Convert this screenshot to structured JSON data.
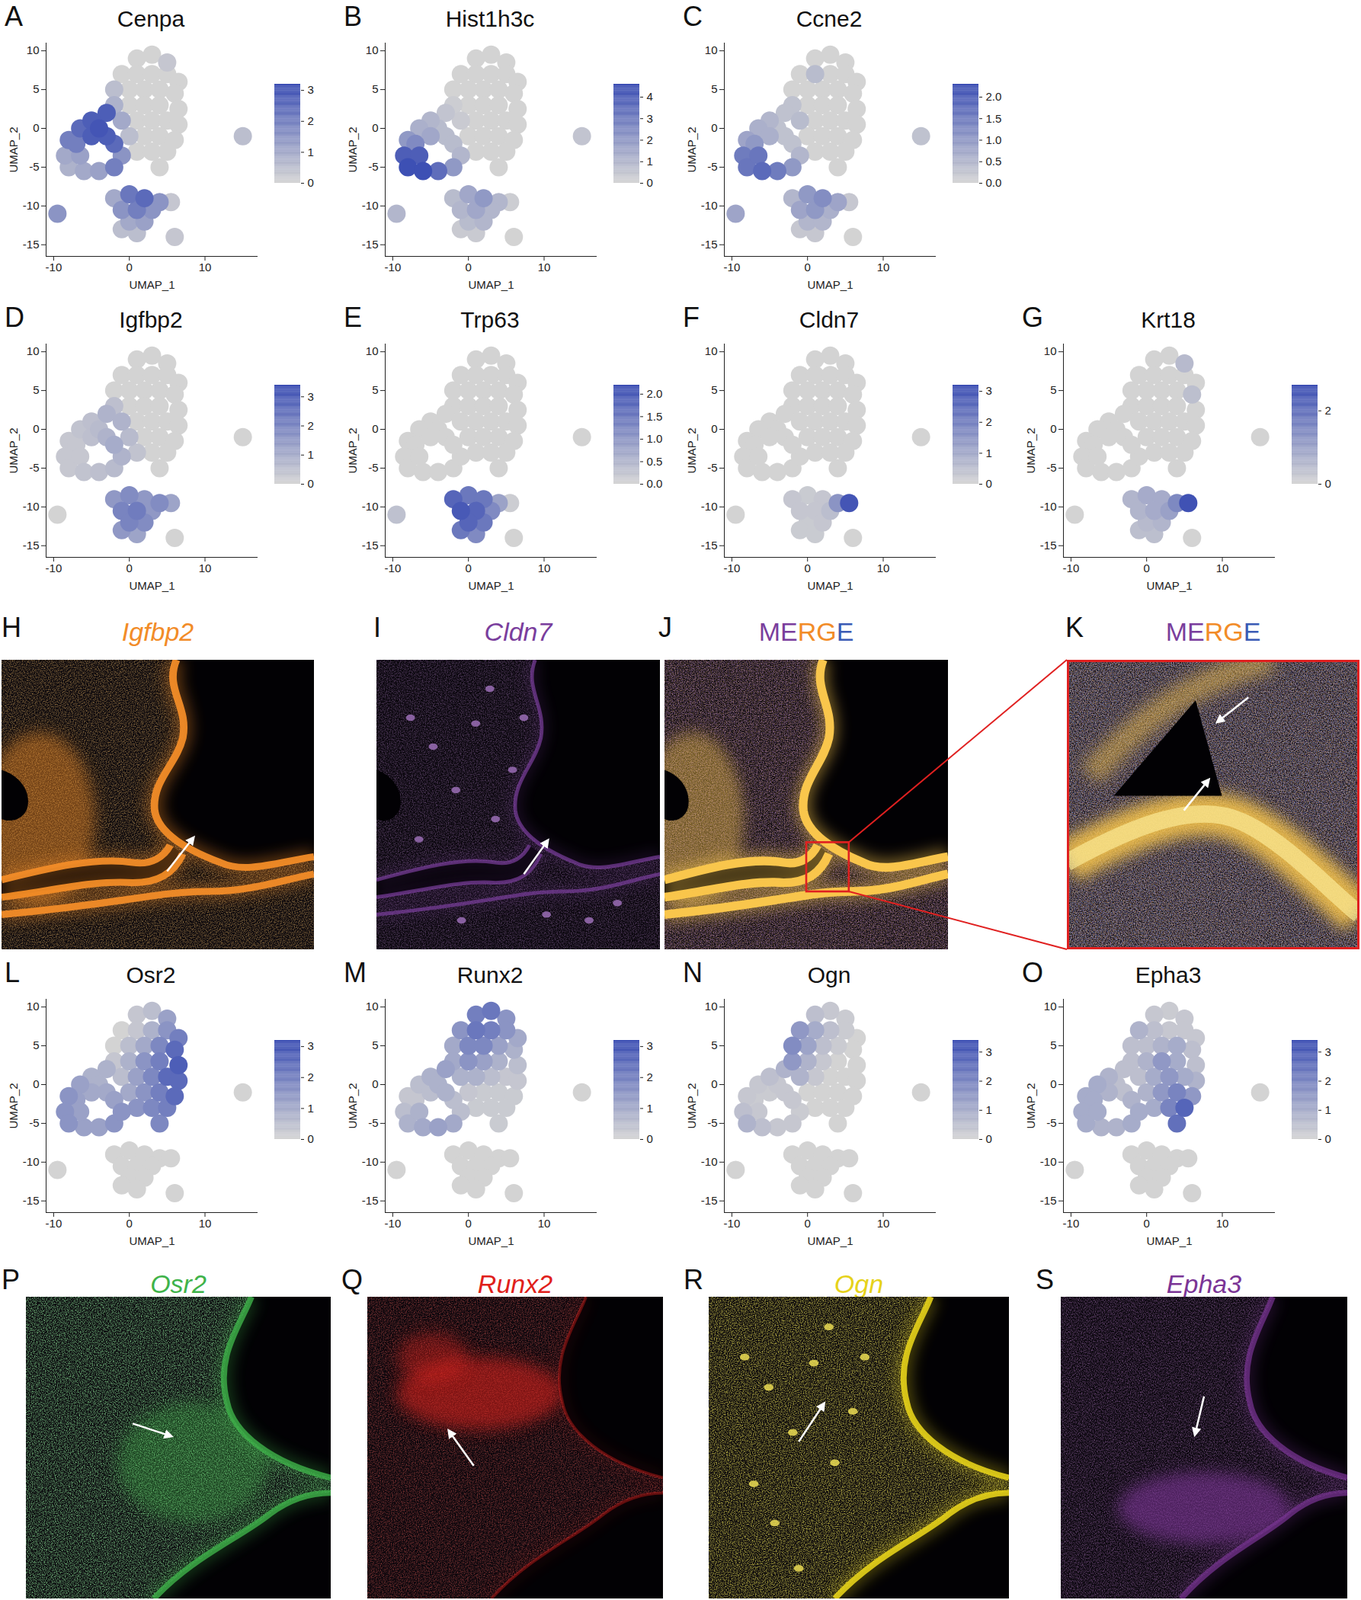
{
  "umap": {
    "xlabel": "UMAP_1",
    "ylabel": "UMAP_2",
    "xlim": [
      -11,
      17
    ],
    "ylim": [
      -16.5,
      11
    ],
    "xticks": [
      -10,
      0,
      10
    ],
    "yticks": [
      -15,
      -10,
      -5,
      0,
      5,
      10
    ],
    "colors": [
      "#d3d3d3",
      "#3a4db3"
    ],
    "x": [
      1,
      3,
      5,
      -1,
      1,
      3,
      5,
      6.5,
      -2,
      0,
      2,
      4,
      6,
      -2,
      0,
      2,
      4,
      6.5,
      -1,
      1,
      3,
      5,
      6.5,
      0,
      2,
      4,
      6,
      1,
      3,
      5,
      4,
      -3,
      -5,
      -6.5,
      -8,
      -4,
      -3,
      -5,
      -7,
      -8.5,
      -8,
      -6,
      -4,
      -2,
      -1,
      -2,
      -6.5,
      -2,
      0,
      2,
      4,
      5.5,
      -1,
      1,
      3,
      0,
      2,
      -1,
      1,
      -9.5,
      15,
      6
    ],
    "y": [
      9,
      9.5,
      8.5,
      7,
      7,
      7,
      7,
      6,
      5,
      5,
      5,
      5,
      4.5,
      3,
      3,
      3,
      3,
      2.5,
      1,
      1,
      1,
      1,
      0.5,
      -1,
      -1,
      -1,
      -1.5,
      -3,
      -3,
      -3,
      -5,
      2,
      1,
      0,
      -1.5,
      0,
      -1,
      -1,
      -2,
      -3.5,
      -5,
      -5.5,
      -5.5,
      -5,
      -3.5,
      -2,
      -3.5,
      -9,
      -8.5,
      -9,
      -9.5,
      -9.5,
      -10.5,
      -10.5,
      -10.5,
      -12,
      -12,
      -13,
      -13.5,
      -11,
      -1,
      -14
    ]
  },
  "chart_data": [
    {
      "type": "scatter",
      "title": "Cenpa",
      "annotations": [
        "A"
      ],
      "color_range": [
        0,
        3.2
      ],
      "color_ticks": [
        0,
        1,
        2,
        3
      ],
      "values": [
        0,
        0,
        0.3,
        0,
        0,
        0,
        0,
        0,
        0.5,
        0,
        0,
        0,
        0,
        0.8,
        0,
        0,
        0,
        0,
        1,
        0,
        0,
        0,
        0,
        0.5,
        0,
        0,
        0,
        0,
        0,
        0,
        0,
        2.8,
        2.8,
        2.5,
        2,
        3,
        2.8,
        2.8,
        2,
        1,
        0.8,
        1,
        1.2,
        2,
        1.5,
        2.5,
        1.2,
        1,
        2.2,
        2.5,
        1.5,
        0.3,
        1.5,
        2,
        1.5,
        1,
        1.2,
        0.5,
        0.5,
        1.5,
        0.5,
        0.3
      ]
    },
    {
      "type": "scatter",
      "title": "Hist1h3c",
      "annotations": [
        "B"
      ],
      "color_range": [
        0,
        4.6
      ],
      "color_ticks": [
        0,
        1,
        2,
        3,
        4
      ],
      "values": [
        0,
        0,
        0,
        0,
        0,
        0,
        0,
        0,
        0,
        0,
        0,
        0,
        0,
        0.2,
        0,
        0,
        0,
        0,
        0.3,
        0,
        0,
        0,
        0,
        0,
        0,
        0,
        0,
        0,
        0,
        0,
        0,
        0.5,
        1,
        1.2,
        2,
        0.8,
        0.8,
        1.5,
        2.5,
        4,
        4.5,
        4.5,
        3.5,
        2,
        1,
        0.8,
        4,
        0.8,
        1.5,
        2,
        1,
        0.2,
        1,
        1.5,
        1,
        0.8,
        1,
        0.3,
        0.3,
        1,
        0.5,
        0
      ]
    },
    {
      "type": "scatter",
      "title": "Ccne2",
      "annotations": [
        "C"
      ],
      "color_range": [
        0,
        2.3
      ],
      "color_ticks": [
        {
          "value": 0,
          "label": "0.0"
        },
        {
          "value": 0.5,
          "label": "0.5"
        },
        {
          "value": 1,
          "label": "1.0"
        },
        {
          "value": 1.5,
          "label": "1.5"
        },
        {
          "value": 2,
          "label": "2.0"
        }
      ],
      "values": [
        0,
        0,
        0,
        0,
        0.4,
        0,
        0,
        0,
        0,
        0,
        0,
        0,
        0,
        0.3,
        0,
        0,
        0,
        0,
        0.4,
        0,
        0,
        0,
        0,
        0,
        0,
        0,
        0,
        0,
        0,
        0,
        0,
        0.3,
        0.5,
        0.6,
        0.8,
        0.3,
        0.3,
        0.6,
        1,
        1.5,
        1.6,
        1.8,
        1.5,
        1,
        0.5,
        0.3,
        1.6,
        0.5,
        1,
        1.2,
        0.8,
        0.2,
        0.8,
        1,
        0.6,
        0.5,
        0.5,
        0.2,
        0.2,
        0.8,
        0.3,
        0
      ]
    },
    {
      "type": "scatter",
      "title": "Igfbp2",
      "annotations": [
        "D"
      ],
      "color_range": [
        0,
        3.4
      ],
      "color_ticks": [
        0,
        1,
        2,
        3
      ],
      "values": [
        0,
        0,
        0,
        0,
        0,
        0,
        0,
        0,
        0,
        0,
        0,
        0,
        0,
        0.5,
        0,
        0,
        0,
        0,
        0.8,
        0,
        0,
        0,
        0,
        0.6,
        0,
        0,
        0,
        0.4,
        0,
        0,
        0,
        0.8,
        0.5,
        0.4,
        0.3,
        0.6,
        0.8,
        0.5,
        0.3,
        0.3,
        0.3,
        0.4,
        0.5,
        0.6,
        0.8,
        1,
        0.3,
        1.5,
        1.8,
        1.5,
        1.8,
        1.2,
        2,
        2.2,
        1.5,
        2,
        1.8,
        1.5,
        1.2,
        0,
        0,
        0
      ]
    },
    {
      "type": "scatter",
      "title": "Trp63",
      "annotations": [
        "E"
      ],
      "color_range": [
        0,
        2.2
      ],
      "color_ticks": [
        {
          "value": 0,
          "label": "0.0"
        },
        {
          "value": 0.5,
          "label": "0.5"
        },
        {
          "value": 1,
          "label": "1.0"
        },
        {
          "value": 1.5,
          "label": "1.5"
        },
        {
          "value": 2,
          "label": "2.0"
        }
      ],
      "values": [
        0,
        0,
        0,
        0,
        0,
        0,
        0,
        0,
        0,
        0,
        0,
        0,
        0,
        0,
        0,
        0,
        0,
        0,
        0,
        0,
        0,
        0,
        0,
        0,
        0,
        0,
        0,
        0,
        0,
        0,
        0,
        0,
        0,
        0,
        0,
        0,
        0,
        0,
        0,
        0,
        0,
        0,
        0,
        0,
        0,
        0,
        0,
        1.8,
        1.5,
        1.5,
        0.8,
        0.1,
        2,
        1.8,
        1.2,
        1.8,
        1.5,
        1.5,
        1.2,
        0.3,
        0,
        0
      ]
    },
    {
      "type": "scatter",
      "title": "Cldn7",
      "annotations": [
        "F"
      ],
      "color_range": [
        0,
        3.2
      ],
      "color_ticks": [
        0,
        1,
        2,
        3
      ],
      "values": [
        0,
        0,
        0,
        0,
        0,
        0,
        0,
        0,
        0,
        0,
        0,
        0,
        0,
        0,
        0,
        0,
        0,
        0,
        0,
        0,
        0,
        0,
        0,
        0,
        0,
        0,
        0,
        0,
        0,
        0,
        0,
        0,
        0,
        0,
        0,
        0,
        0,
        0,
        0,
        0,
        0,
        0,
        0,
        0,
        0,
        0,
        0,
        0.3,
        0.2,
        0.3,
        1.5,
        3,
        0.3,
        0.3,
        0.5,
        0.2,
        0.3,
        0.2,
        0.2,
        0,
        0,
        0
      ]
    },
    {
      "type": "scatter",
      "title": "Krt18",
      "annotations": [
        "G"
      ],
      "color_range": [
        0,
        2.7
      ],
      "color_ticks": [
        0,
        2
      ],
      "values": [
        0,
        0,
        0.5,
        0,
        0,
        0,
        0,
        0,
        0,
        0,
        0,
        0,
        0.4,
        0,
        0,
        0,
        0,
        0,
        0,
        0,
        0,
        0,
        0,
        0,
        0,
        0,
        0,
        0,
        0,
        0,
        0,
        0,
        0,
        0,
        0,
        0,
        0,
        0,
        0,
        0,
        0,
        0,
        0,
        0,
        0,
        0,
        0,
        0.6,
        0.8,
        0.8,
        1.5,
        2.6,
        0.6,
        0.8,
        1,
        0.5,
        0.6,
        0.4,
        0.4,
        0,
        0,
        0
      ]
    },
    {
      "type": "scatter",
      "title": "Osr2",
      "annotations": [
        "L"
      ],
      "color_range": [
        0,
        3.2
      ],
      "color_ticks": [
        0,
        1,
        2,
        3
      ],
      "values": [
        0.3,
        0.5,
        1.2,
        0,
        0.3,
        0.8,
        1.5,
        2,
        0,
        0.5,
        1,
        1.8,
        2.5,
        0.3,
        0.8,
        1.5,
        2,
        2.8,
        0.5,
        1.2,
        1.8,
        2.5,
        2.5,
        1,
        1.5,
        2,
        2.5,
        1.5,
        1.8,
        2,
        1.8,
        0.8,
        0.8,
        1.2,
        1.5,
        0.8,
        1,
        1,
        1.2,
        1.5,
        1.5,
        1.2,
        1.2,
        1.5,
        1.5,
        1.2,
        1.2,
        0,
        0,
        0,
        0,
        0,
        0,
        0,
        0,
        0,
        0,
        0,
        0,
        0,
        0,
        0
      ]
    },
    {
      "type": "scatter",
      "title": "Runx2",
      "annotations": [
        "M"
      ],
      "color_range": [
        0,
        3.2
      ],
      "color_ticks": [
        0,
        1,
        2,
        3
      ],
      "values": [
        2,
        2.2,
        1.5,
        1.5,
        2.2,
        2,
        1.5,
        1,
        1,
        1.8,
        1.8,
        1.2,
        0.8,
        1,
        1.5,
        1.2,
        0.8,
        0.5,
        0.8,
        0.8,
        0.5,
        0.3,
        0.3,
        0.3,
        0.2,
        0.2,
        0.2,
        0.2,
        0.2,
        0.2,
        0.2,
        1.2,
        0.8,
        0.5,
        0.3,
        0.8,
        0.8,
        0.5,
        0.3,
        0.5,
        0.8,
        1,
        1.2,
        1,
        0.5,
        0.5,
        0.8,
        0,
        0,
        0,
        0,
        0,
        0,
        0,
        0,
        0,
        0,
        0,
        0,
        0,
        0,
        0
      ]
    },
    {
      "type": "scatter",
      "title": "Ogn",
      "annotations": [
        "N"
      ],
      "color_range": [
        0,
        3.4
      ],
      "color_ticks": [
        0,
        1,
        2,
        3
      ],
      "values": [
        0.5,
        0.3,
        0.2,
        1.5,
        1,
        0.5,
        0.2,
        0,
        1.8,
        1.2,
        0.5,
        0.2,
        0,
        1.5,
        0.8,
        0.3,
        0,
        0,
        0.8,
        0.3,
        0,
        0,
        0,
        0,
        0,
        0,
        0,
        0,
        0,
        0,
        0,
        0.8,
        0.5,
        0.3,
        0.3,
        0.3,
        0.3,
        0.2,
        0.2,
        0.5,
        0.8,
        0.5,
        0.3,
        0.3,
        0.2,
        0.3,
        0.3,
        0,
        0,
        0,
        0,
        0,
        0,
        0,
        0,
        0,
        0,
        0,
        0,
        0,
        0,
        0
      ]
    },
    {
      "type": "scatter",
      "title": "Epha3",
      "annotations": [
        "O"
      ],
      "color_range": [
        0,
        3.4
      ],
      "color_ticks": [
        0,
        1,
        2,
        3
      ],
      "values": [
        0.3,
        0.2,
        0.3,
        0.8,
        0.5,
        0.3,
        0.3,
        0.3,
        0.5,
        0.5,
        0.8,
        1,
        0.5,
        0.5,
        0.8,
        1.5,
        1,
        0.5,
        0.5,
        1,
        1.5,
        1,
        0.8,
        0.8,
        1.5,
        2,
        1.5,
        1,
        2,
        2.8,
        2.5,
        0.5,
        0.8,
        1,
        1,
        0.5,
        0.5,
        0.8,
        1,
        1,
        1,
        0.8,
        0.8,
        1,
        1,
        0.8,
        1,
        0,
        0,
        0,
        0,
        0,
        0,
        0,
        0,
        0,
        0,
        0,
        0,
        0,
        0,
        0
      ]
    }
  ],
  "images": [
    {
      "panel": "H",
      "title": "Igfbp2",
      "color": "#f28c28"
    },
    {
      "panel": "I",
      "title": "Cldn7",
      "color": "#7a3e9d"
    },
    {
      "panel": "J",
      "title": "MERGE",
      "colors": [
        "#7a3e9d",
        "#7a3e9d",
        "#f28c28",
        "#f28c28",
        "#3b5bb5"
      ]
    },
    {
      "panel": "K",
      "title": "MERGE",
      "colors": [
        "#7a3e9d",
        "#7a3e9d",
        "#f28c28",
        "#f28c28",
        "#3b5bb5"
      ]
    },
    {
      "panel": "P",
      "title": "Osr2",
      "color": "#3fb34a"
    },
    {
      "panel": "Q",
      "title": "Runx2",
      "color": "#e0201b"
    },
    {
      "panel": "R",
      "title": "Ogn",
      "color": "#e6d21a"
    },
    {
      "panel": "S",
      "title": "Epha3",
      "color": "#7b3596"
    }
  ]
}
